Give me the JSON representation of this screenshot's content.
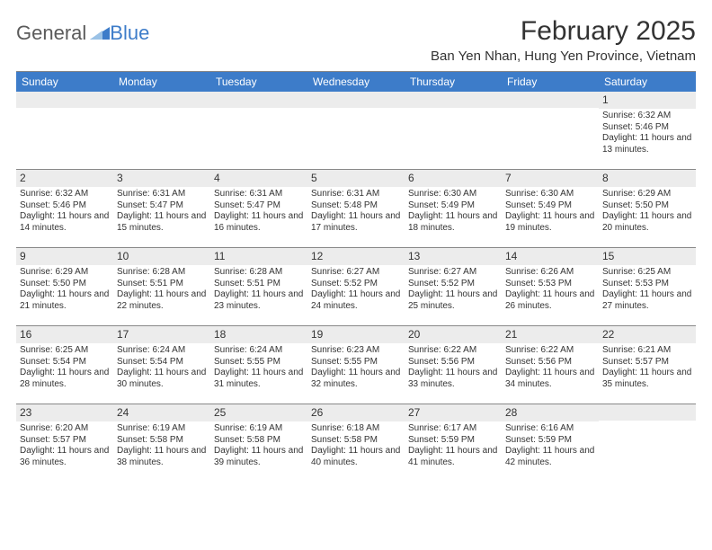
{
  "logo": {
    "text1": "General",
    "text2": "Blue"
  },
  "title": "February 2025",
  "location": "Ban Yen Nhan, Hung Yen Province, Vietnam",
  "colors": {
    "header_bg": "#3d7cc9",
    "header_text": "#ffffff",
    "daynum_bg": "#ececec",
    "text": "#333333",
    "rule": "#888888",
    "logo_gray": "#5b5b5b",
    "logo_blue": "#3d7cc9"
  },
  "weekdays": [
    "Sunday",
    "Monday",
    "Tuesday",
    "Wednesday",
    "Thursday",
    "Friday",
    "Saturday"
  ],
  "weeks": [
    [
      {
        "n": "",
        "lines": []
      },
      {
        "n": "",
        "lines": []
      },
      {
        "n": "",
        "lines": []
      },
      {
        "n": "",
        "lines": []
      },
      {
        "n": "",
        "lines": []
      },
      {
        "n": "",
        "lines": []
      },
      {
        "n": "1",
        "lines": [
          "Sunrise: 6:32 AM",
          "Sunset: 5:46 PM",
          "Daylight: 11 hours and 13 minutes."
        ]
      }
    ],
    [
      {
        "n": "2",
        "lines": [
          "Sunrise: 6:32 AM",
          "Sunset: 5:46 PM",
          "Daylight: 11 hours and 14 minutes."
        ]
      },
      {
        "n": "3",
        "lines": [
          "Sunrise: 6:31 AM",
          "Sunset: 5:47 PM",
          "Daylight: 11 hours and 15 minutes."
        ]
      },
      {
        "n": "4",
        "lines": [
          "Sunrise: 6:31 AM",
          "Sunset: 5:47 PM",
          "Daylight: 11 hours and 16 minutes."
        ]
      },
      {
        "n": "5",
        "lines": [
          "Sunrise: 6:31 AM",
          "Sunset: 5:48 PM",
          "Daylight: 11 hours and 17 minutes."
        ]
      },
      {
        "n": "6",
        "lines": [
          "Sunrise: 6:30 AM",
          "Sunset: 5:49 PM",
          "Daylight: 11 hours and 18 minutes."
        ]
      },
      {
        "n": "7",
        "lines": [
          "Sunrise: 6:30 AM",
          "Sunset: 5:49 PM",
          "Daylight: 11 hours and 19 minutes."
        ]
      },
      {
        "n": "8",
        "lines": [
          "Sunrise: 6:29 AM",
          "Sunset: 5:50 PM",
          "Daylight: 11 hours and 20 minutes."
        ]
      }
    ],
    [
      {
        "n": "9",
        "lines": [
          "Sunrise: 6:29 AM",
          "Sunset: 5:50 PM",
          "Daylight: 11 hours and 21 minutes."
        ]
      },
      {
        "n": "10",
        "lines": [
          "Sunrise: 6:28 AM",
          "Sunset: 5:51 PM",
          "Daylight: 11 hours and 22 minutes."
        ]
      },
      {
        "n": "11",
        "lines": [
          "Sunrise: 6:28 AM",
          "Sunset: 5:51 PM",
          "Daylight: 11 hours and 23 minutes."
        ]
      },
      {
        "n": "12",
        "lines": [
          "Sunrise: 6:27 AM",
          "Sunset: 5:52 PM",
          "Daylight: 11 hours and 24 minutes."
        ]
      },
      {
        "n": "13",
        "lines": [
          "Sunrise: 6:27 AM",
          "Sunset: 5:52 PM",
          "Daylight: 11 hours and 25 minutes."
        ]
      },
      {
        "n": "14",
        "lines": [
          "Sunrise: 6:26 AM",
          "Sunset: 5:53 PM",
          "Daylight: 11 hours and 26 minutes."
        ]
      },
      {
        "n": "15",
        "lines": [
          "Sunrise: 6:25 AM",
          "Sunset: 5:53 PM",
          "Daylight: 11 hours and 27 minutes."
        ]
      }
    ],
    [
      {
        "n": "16",
        "lines": [
          "Sunrise: 6:25 AM",
          "Sunset: 5:54 PM",
          "Daylight: 11 hours and 28 minutes."
        ]
      },
      {
        "n": "17",
        "lines": [
          "Sunrise: 6:24 AM",
          "Sunset: 5:54 PM",
          "Daylight: 11 hours and 30 minutes."
        ]
      },
      {
        "n": "18",
        "lines": [
          "Sunrise: 6:24 AM",
          "Sunset: 5:55 PM",
          "Daylight: 11 hours and 31 minutes."
        ]
      },
      {
        "n": "19",
        "lines": [
          "Sunrise: 6:23 AM",
          "Sunset: 5:55 PM",
          "Daylight: 11 hours and 32 minutes."
        ]
      },
      {
        "n": "20",
        "lines": [
          "Sunrise: 6:22 AM",
          "Sunset: 5:56 PM",
          "Daylight: 11 hours and 33 minutes."
        ]
      },
      {
        "n": "21",
        "lines": [
          "Sunrise: 6:22 AM",
          "Sunset: 5:56 PM",
          "Daylight: 11 hours and 34 minutes."
        ]
      },
      {
        "n": "22",
        "lines": [
          "Sunrise: 6:21 AM",
          "Sunset: 5:57 PM",
          "Daylight: 11 hours and 35 minutes."
        ]
      }
    ],
    [
      {
        "n": "23",
        "lines": [
          "Sunrise: 6:20 AM",
          "Sunset: 5:57 PM",
          "Daylight: 11 hours and 36 minutes."
        ]
      },
      {
        "n": "24",
        "lines": [
          "Sunrise: 6:19 AM",
          "Sunset: 5:58 PM",
          "Daylight: 11 hours and 38 minutes."
        ]
      },
      {
        "n": "25",
        "lines": [
          "Sunrise: 6:19 AM",
          "Sunset: 5:58 PM",
          "Daylight: 11 hours and 39 minutes."
        ]
      },
      {
        "n": "26",
        "lines": [
          "Sunrise: 6:18 AM",
          "Sunset: 5:58 PM",
          "Daylight: 11 hours and 40 minutes."
        ]
      },
      {
        "n": "27",
        "lines": [
          "Sunrise: 6:17 AM",
          "Sunset: 5:59 PM",
          "Daylight: 11 hours and 41 minutes."
        ]
      },
      {
        "n": "28",
        "lines": [
          "Sunrise: 6:16 AM",
          "Sunset: 5:59 PM",
          "Daylight: 11 hours and 42 minutes."
        ]
      },
      {
        "n": "",
        "lines": []
      }
    ]
  ]
}
